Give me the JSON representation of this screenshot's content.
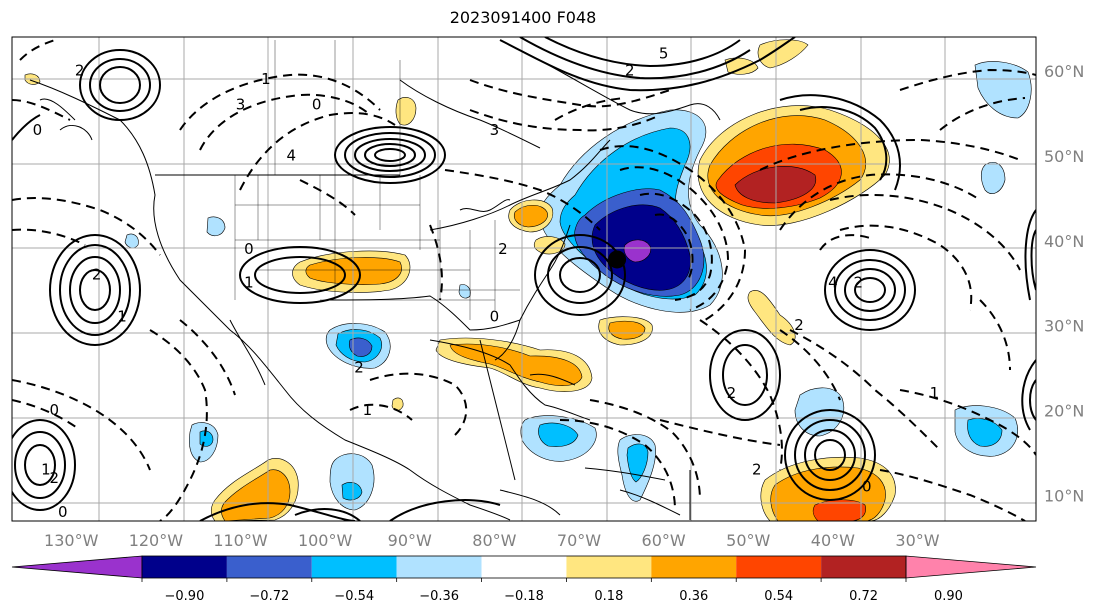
{
  "title": "2023091400 F048",
  "map": {
    "lon_range": [
      -137,
      -16
    ],
    "lat_range": [
      7,
      64
    ],
    "grid": true,
    "lon_ticks": [
      "130°W",
      "120°W",
      "110°W",
      "100°W",
      "90°W",
      "80°W",
      "70°W",
      "60°W",
      "50°W",
      "40°W",
      "30°W"
    ],
    "lat_ticks": [
      "10°N",
      "20°N",
      "30°N",
      "40°N",
      "50°N",
      "60°N"
    ],
    "storm_marker": {
      "lon": -65.5,
      "lat": 37.8,
      "color": "#000000"
    }
  },
  "colorbar": {
    "levels": [
      "−0.90",
      "−0.72",
      "−0.54",
      "−0.36",
      "−0.18",
      "0.18",
      "0.36",
      "0.54",
      "0.72",
      "0.90"
    ],
    "colors": [
      "#9a32cd",
      "#00008b",
      "#3a5fcd",
      "#00bfff",
      "#b0e2ff",
      "#ffffff",
      "#ffe680",
      "#ffa500",
      "#ff4500",
      "#b22222",
      "#ff82ab"
    ],
    "extend": "both"
  },
  "contour_labels": [
    {
      "text": "2",
      "lon": -129,
      "lat": 60
    },
    {
      "text": "0",
      "lon": -134,
      "lat": 53
    },
    {
      "text": "3",
      "lon": -110,
      "lat": 56
    },
    {
      "text": "1",
      "lon": -107,
      "lat": 59
    },
    {
      "text": "4",
      "lon": -104,
      "lat": 50
    },
    {
      "text": "0",
      "lon": -101,
      "lat": 56
    },
    {
      "text": "0",
      "lon": -109,
      "lat": 39
    },
    {
      "text": "1",
      "lon": -109,
      "lat": 35
    },
    {
      "text": "2",
      "lon": -127,
      "lat": 36
    },
    {
      "text": "1",
      "lon": -124,
      "lat": 31
    },
    {
      "text": "0",
      "lon": -80,
      "lat": 31
    },
    {
      "text": "2",
      "lon": -79,
      "lat": 39
    },
    {
      "text": "2",
      "lon": -96,
      "lat": 25
    },
    {
      "text": "3",
      "lon": -80,
      "lat": 53
    },
    {
      "text": "5",
      "lon": -60,
      "lat": 62
    },
    {
      "text": "2",
      "lon": -64,
      "lat": 60
    },
    {
      "text": "4",
      "lon": -40,
      "lat": 35
    },
    {
      "text": "2",
      "lon": -37,
      "lat": 35
    },
    {
      "text": "2",
      "lon": -52,
      "lat": 22
    },
    {
      "text": "2",
      "lon": -44,
      "lat": 30
    },
    {
      "text": "2",
      "lon": -49,
      "lat": 13
    },
    {
      "text": "1",
      "lon": -28,
      "lat": 22
    },
    {
      "text": "0",
      "lon": -36,
      "lat": 11
    },
    {
      "text": "1",
      "lon": -133,
      "lat": 13
    },
    {
      "text": "2",
      "lon": -132,
      "lat": 12
    },
    {
      "text": "0",
      "lon": -131,
      "lat": 8
    },
    {
      "text": "0",
      "lon": -132,
      "lat": 20
    },
    {
      "text": "1",
      "lon": -95,
      "lat": 20
    }
  ]
}
